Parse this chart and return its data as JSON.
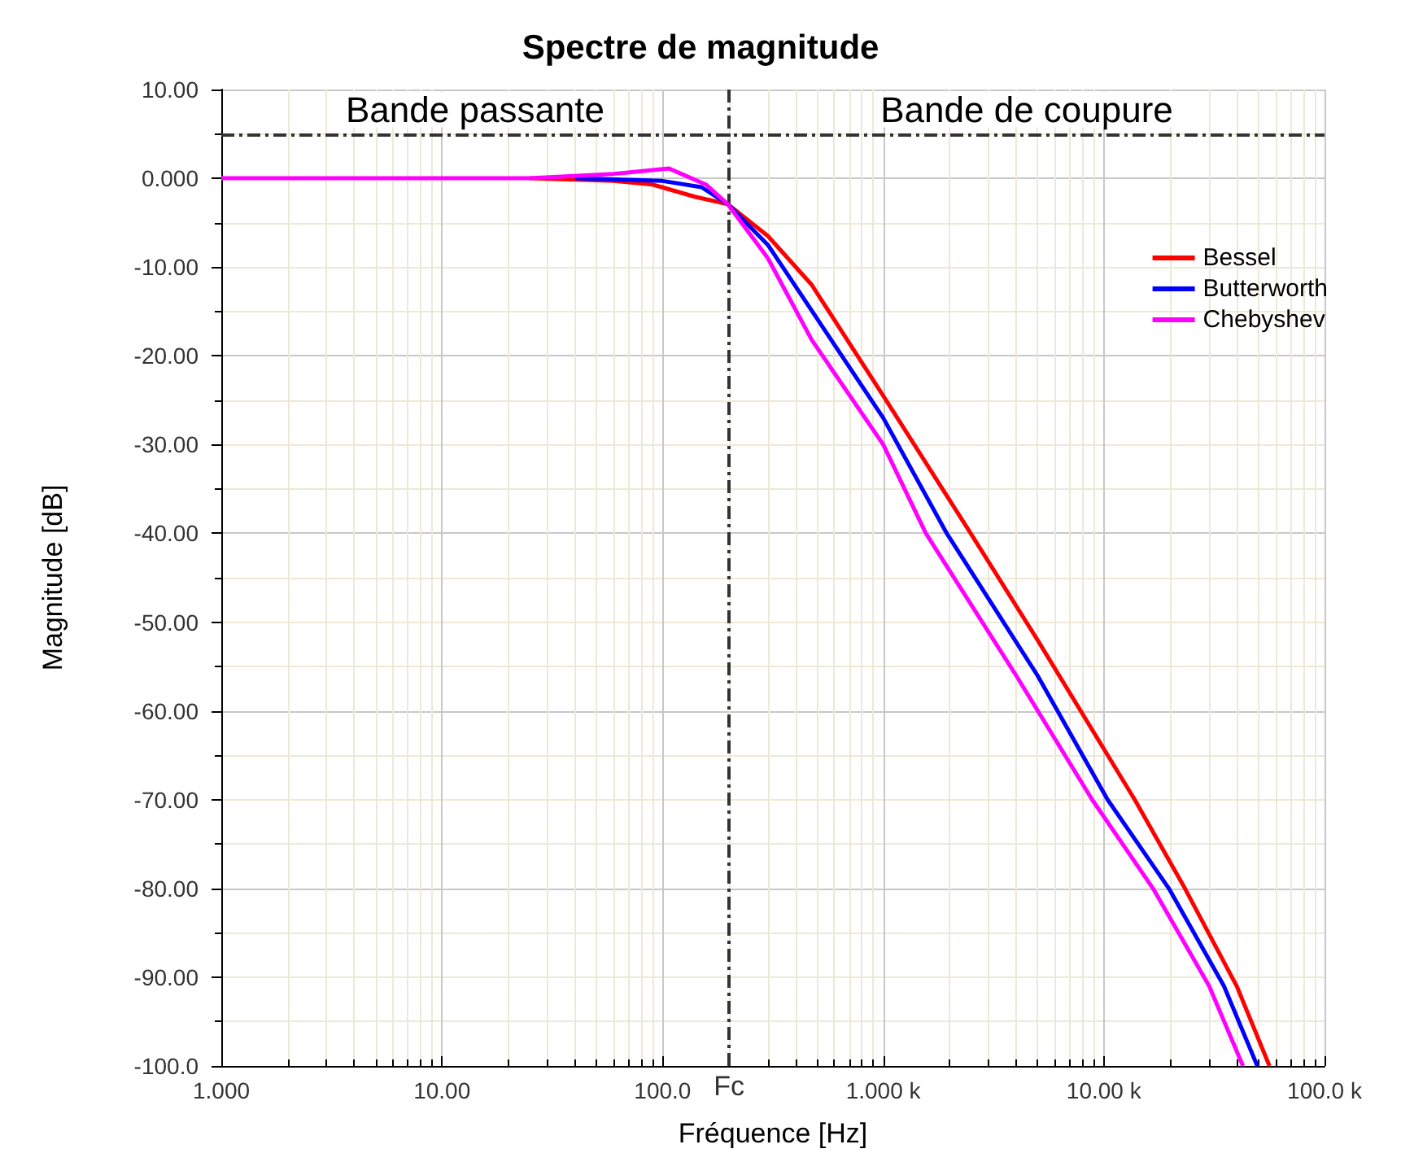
{
  "chart_data": {
    "type": "line",
    "title": "Spectre de magnitude",
    "xlabel": "Fréquence [Hz]",
    "ylabel": "Magnitude [dB]",
    "log": "x",
    "xlim": [
      1,
      100000
    ],
    "xticks": [
      {
        "value": 1,
        "label": "1.000"
      },
      {
        "value": 10,
        "label": "10.00"
      },
      {
        "value": 100,
        "label": "100.0"
      },
      {
        "value": 1000,
        "label": "1.000 k"
      },
      {
        "value": 10000,
        "label": "10.00 k"
      },
      {
        "value": 100000,
        "label": "100.0 k"
      }
    ],
    "ylim": [
      -100,
      10
    ],
    "yticks": [
      {
        "value": 10,
        "label": "10.00"
      },
      {
        "value": 0,
        "label": "0.000"
      },
      {
        "value": -10,
        "label": "-10.00"
      },
      {
        "value": -20,
        "label": "-20.00"
      },
      {
        "value": -30,
        "label": "-30.00"
      },
      {
        "value": -40,
        "label": "-40.00"
      },
      {
        "value": -50,
        "label": "-50.00"
      },
      {
        "value": -60,
        "label": "-60.00"
      },
      {
        "value": -70,
        "label": "-70.00"
      },
      {
        "value": -80,
        "label": "-80.00"
      },
      {
        "value": -90,
        "label": "-90.00"
      },
      {
        "value": -100,
        "label": "-100.0"
      }
    ],
    "grid": true,
    "legend": "top right",
    "marker": "none",
    "line_style": "solid",
    "series": [
      {
        "name": "Bessel",
        "color": "#ff0000",
        "x": [
          25,
          60,
          90,
          141,
          197,
          300,
          474,
          1000,
          2490,
          5000,
          13800,
          23300,
          40000,
          56300
        ],
        "values": [
          0,
          -0.3,
          -0.7,
          -2.1,
          -2.9,
          -6.5,
          -12,
          -24.5,
          -40,
          -52,
          -70,
          -80,
          -91,
          -100
        ]
      },
      {
        "name": "Butterworth",
        "color": "#0000ff",
        "x": [
          40,
          100,
          150,
          197,
          300,
          474,
          1000,
          1940,
          5000,
          10400,
          19700,
          35000,
          49600
        ],
        "values": [
          0,
          -0.3,
          -1,
          -2.9,
          -7.5,
          -14.9,
          -27,
          -40,
          -56,
          -70,
          -80,
          -91,
          -100
        ]
      },
      {
        "name": "Chebyshev",
        "color": "#ff00ff",
        "x": [
          1,
          25,
          60,
          107,
          157,
          197,
          300,
          474,
          1000,
          1560,
          4000,
          8850,
          16700,
          30000,
          42700
        ],
        "values": [
          0,
          0,
          0.5,
          1.1,
          -0.7,
          -2.9,
          -9,
          -18.2,
          -30,
          -40,
          -56,
          -70,
          -80,
          -91,
          -100
        ]
      }
    ],
    "ref_lines": [
      {
        "axis": "x",
        "value": 200,
        "label": "Fc",
        "color": "#333333",
        "line_style": "dashdot"
      },
      {
        "axis": "y",
        "value": 5,
        "label": null,
        "color": "#333333",
        "line_style": "dashdot"
      }
    ],
    "annotations": [
      "Bande passante",
      "Bande de coupure"
    ]
  }
}
